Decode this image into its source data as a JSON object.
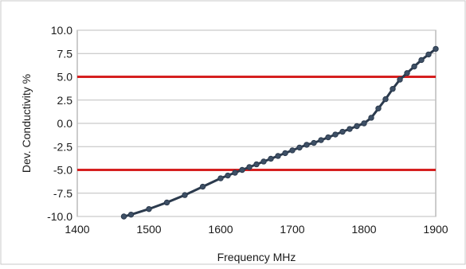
{
  "chart_data": {
    "type": "line",
    "title": "",
    "xlabel": "Frequency MHz",
    "ylabel": "Dev. Conductivity %",
    "xlim": [
      1400,
      1900
    ],
    "ylim": [
      -10.0,
      10.0
    ],
    "x_ticks": [
      "1400",
      "1500",
      "1600",
      "1700",
      "1800",
      "1900"
    ],
    "y_ticks": [
      "10.0",
      "7.5",
      "5.0",
      "2.5",
      "0.0",
      "-2.5",
      "-5.0",
      "-7.5",
      "-10.0"
    ],
    "x_tick_values": [
      1400,
      1500,
      1600,
      1700,
      1800,
      1900
    ],
    "y_tick_values": [
      10.0,
      7.5,
      5.0,
      2.5,
      0.0,
      -2.5,
      -5.0,
      -7.5,
      -10.0
    ],
    "grid": "horizontal",
    "legend": "none",
    "series": [
      {
        "color": "#2b3a4d",
        "x": [
          1465,
          1475,
          1500,
          1525,
          1550,
          1575,
          1600,
          1610,
          1620,
          1630,
          1640,
          1650,
          1660,
          1670,
          1680,
          1690,
          1700,
          1710,
          1720,
          1730,
          1740,
          1750,
          1760,
          1770,
          1780,
          1790,
          1800,
          1810,
          1820,
          1830,
          1840,
          1850,
          1860,
          1870,
          1880,
          1890,
          1900
        ],
        "y": [
          -10.0,
          -9.8,
          -9.2,
          -8.5,
          -7.7,
          -6.8,
          -5.9,
          -5.6,
          -5.3,
          -5.0,
          -4.7,
          -4.4,
          -4.1,
          -3.8,
          -3.5,
          -3.2,
          -2.9,
          -2.6,
          -2.3,
          -2.1,
          -1.8,
          -1.5,
          -1.2,
          -0.9,
          -0.6,
          -0.3,
          0.0,
          0.6,
          1.6,
          2.6,
          3.7,
          4.7,
          5.4,
          6.1,
          6.8,
          7.4,
          8.0
        ]
      }
    ],
    "reference_lines": [
      {
        "y": 5.0,
        "color": "#d62020"
      },
      {
        "y": -5.0,
        "color": "#d62020"
      }
    ]
  }
}
